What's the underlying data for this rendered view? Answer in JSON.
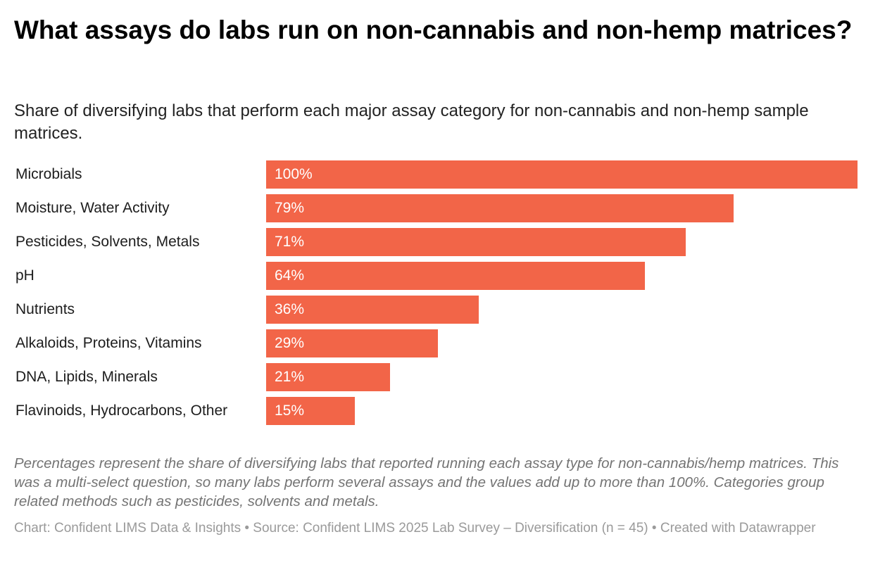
{
  "title": "What assays do labs run on non-cannabis and non-hemp matrices?",
  "subtitle": "Share of diversifying labs that perform each major assay category for non-cannabis and non-hemp sample matrices.",
  "chart_data": {
    "type": "bar",
    "orientation": "horizontal",
    "categories": [
      "Microbials",
      "Moisture, Water Activity",
      "Pesticides, Solvents, Metals",
      "pH",
      "Nutrients",
      "Alkaloids, Proteins, Vitamins",
      "DNA, Lipids, Minerals",
      "Flavinoids, Hydrocarbons, Other"
    ],
    "values": [
      100,
      79,
      71,
      64,
      36,
      29,
      21,
      15
    ],
    "value_labels": [
      "100%",
      "79%",
      "71%",
      "64%",
      "36%",
      "29%",
      "21%",
      "15%"
    ],
    "xlim": [
      0,
      100
    ],
    "grid": false,
    "bar_color": "#f26548"
  },
  "notes": "Percentages represent the share of diversifying labs that reported running each assay type for non-cannabis/hemp matrices. This was a multi-select question, so many labs perform several assays and the values add up to more than 100%. Categories group related methods such as pesticides, solvents and metals.",
  "footer": "Chart: Confident LIMS Data & Insights • Source: Confident LIMS 2025 Lab Survey – Diversification (n = 45) • Created with Datawrapper"
}
